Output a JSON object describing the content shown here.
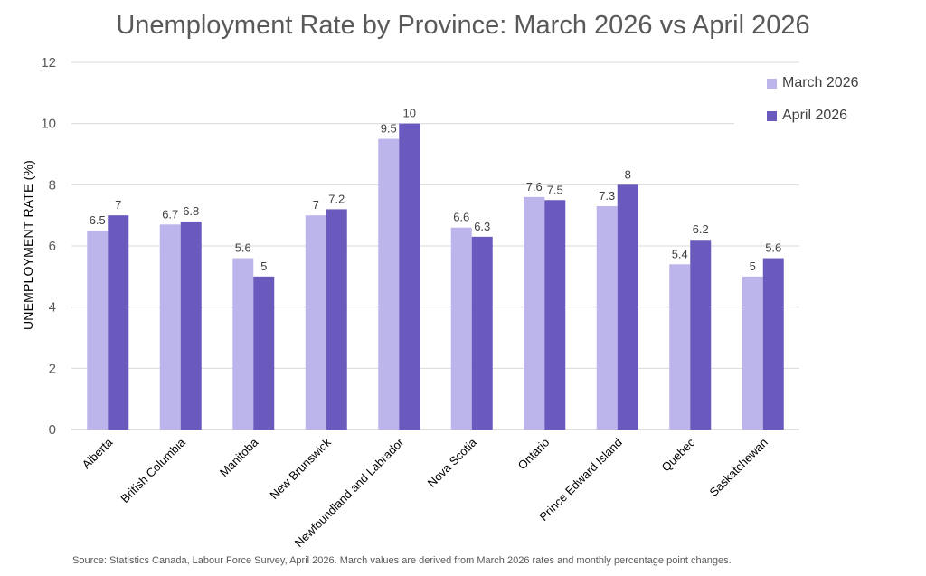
{
  "chart_data": {
    "type": "bar",
    "title": "Unemployment Rate by Province: March 2026 vs April 2026",
    "ylabel": "UNEMPLOYMENT RATE (%)",
    "xlabel": "",
    "ylim": [
      0,
      12
    ],
    "yticks": [
      0,
      2,
      4,
      6,
      8,
      10,
      12
    ],
    "grid": true,
    "legend_position": "top-right",
    "categories": [
      "Alberta",
      "British Columbia",
      "Manitoba",
      "New Brunswick",
      "Newfoundland and Labrador",
      "Nova Scotia",
      "Ontario",
      "Prince Edward Island",
      "Quebec",
      "Saskatchewan"
    ],
    "series": [
      {
        "name": "March 2026",
        "color": "#bcb5eb",
        "values": [
          6.5,
          6.7,
          5.6,
          7,
          9.5,
          6.6,
          7.6,
          7.3,
          5.4,
          5
        ]
      },
      {
        "name": "April 2026",
        "color": "#6a5abd",
        "values": [
          7,
          6.8,
          5,
          7.2,
          10,
          6.3,
          7.5,
          8,
          6.2,
          5.6
        ]
      }
    ]
  },
  "source_note": "Source: Statistics Canada, Labour Force Survey, April 2026. March values are derived from March 2026 rates and monthly percentage point changes."
}
